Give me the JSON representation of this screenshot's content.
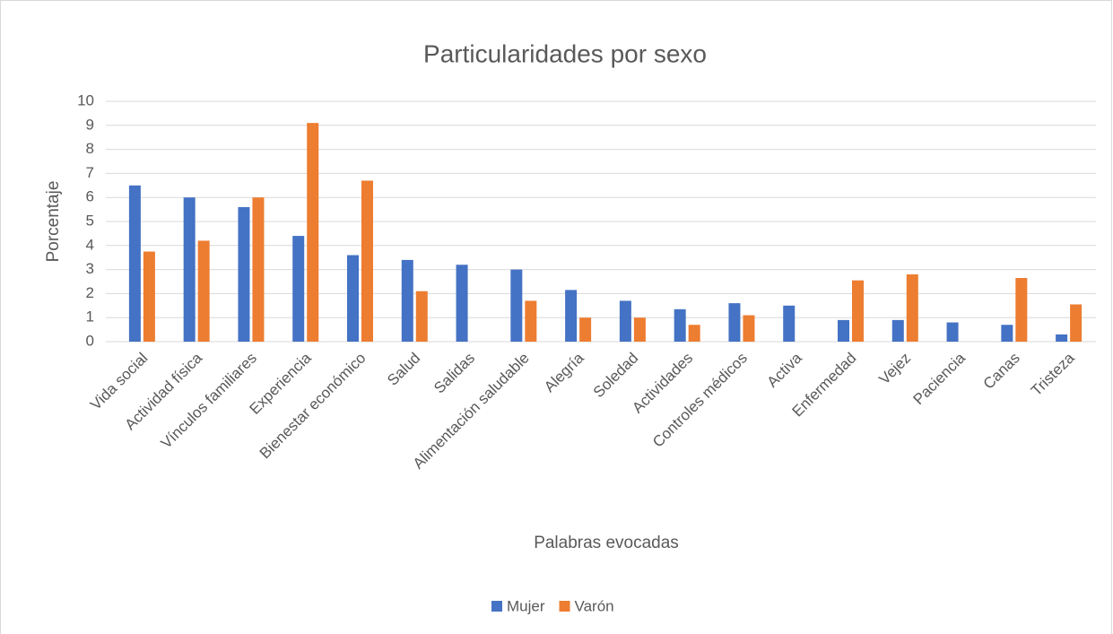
{
  "chart_data": {
    "type": "bar",
    "title": "Particularidades por sexo",
    "x_label": "Palabras evocadas",
    "y_label": "Porcentaje",
    "categories": [
      "Vida social",
      "Actividad física",
      "Vínculos familiares",
      "Experiencia",
      "Bienestar económico",
      "Salud",
      "Salidas",
      "Alimentación saludable",
      "Alegría",
      "Soledad",
      "Actividades",
      "Controles médicos",
      "Activa",
      "Enfermedad",
      "Vejez",
      "Paciencia",
      "Canas",
      "Tristeza"
    ],
    "series": [
      {
        "name": "Mujer",
        "color": "#4472c4",
        "values": [
          6.5,
          6.0,
          5.6,
          4.4,
          3.6,
          3.4,
          3.2,
          3.0,
          2.15,
          1.7,
          1.35,
          1.6,
          1.5,
          0.9,
          0.9,
          0.8,
          0.7,
          0.3
        ]
      },
      {
        "name": "Varón",
        "color": "#ed7d31",
        "values": [
          3.75,
          4.2,
          6.0,
          9.1,
          6.7,
          2.1,
          0,
          1.7,
          1.0,
          1.0,
          0.7,
          1.1,
          0,
          2.55,
          2.8,
          0,
          2.65,
          1.55
        ]
      }
    ],
    "ylim": [
      0,
      10
    ],
    "yticks": [
      0,
      1,
      2,
      3,
      4,
      5,
      6,
      7,
      8,
      9,
      10
    ],
    "grid": true,
    "legend": "bottom"
  }
}
